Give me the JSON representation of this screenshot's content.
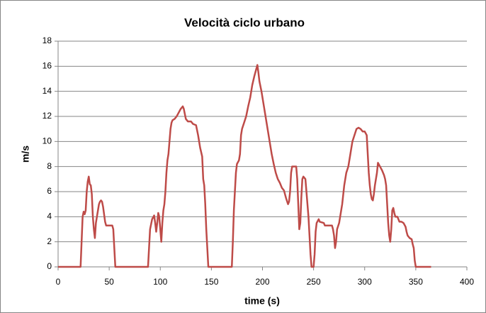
{
  "chart_data": {
    "type": "line",
    "title": "Velocità ciclo urbano",
    "x_label": "time (s)",
    "y_label": "m/s",
    "color": "#be4b48",
    "grid": true,
    "xlim": [
      0,
      400
    ],
    "xticks": [
      0,
      50,
      100,
      150,
      200,
      250,
      300,
      350,
      400
    ],
    "ylim": [
      0,
      18
    ],
    "yticks": [
      0,
      2,
      4,
      6,
      8,
      10,
      12,
      14,
      16,
      18
    ],
    "x": [
      0,
      22,
      23,
      24,
      25,
      26,
      27,
      28,
      29,
      30,
      31,
      32,
      33,
      34,
      35,
      36,
      37,
      38,
      39,
      40,
      41,
      42,
      43,
      44,
      45,
      46,
      47,
      50,
      53,
      54,
      55,
      56,
      88,
      89,
      90,
      92,
      94,
      95,
      96,
      97,
      98,
      99,
      100,
      101,
      102,
      103,
      104,
      105,
      106,
      107,
      108,
      109,
      110,
      111,
      112,
      114,
      116,
      118,
      120,
      122,
      123,
      124,
      125,
      127,
      130,
      132,
      135,
      137,
      139,
      141,
      142,
      143,
      144,
      145,
      146,
      147,
      170,
      171,
      172,
      173,
      174,
      175,
      177,
      178,
      179,
      180,
      182,
      184,
      186,
      188,
      190,
      192,
      194,
      195,
      196,
      197,
      199,
      201,
      203,
      205,
      207,
      209,
      211,
      213,
      215,
      217,
      219,
      221,
      223,
      225,
      226,
      227,
      228,
      229,
      233,
      234,
      235,
      236,
      237,
      238,
      239,
      240,
      242,
      243,
      244,
      245,
      246,
      247,
      248,
      250,
      251,
      252,
      253,
      255,
      256,
      260,
      261,
      268,
      269,
      270,
      271,
      272,
      273,
      275,
      277,
      278,
      280,
      282,
      284,
      286,
      288,
      290,
      292,
      294,
      296,
      298,
      300,
      302,
      303,
      304,
      305,
      306,
      307,
      308,
      309,
      310,
      311,
      312,
      313,
      315,
      317,
      319,
      320,
      321,
      322,
      323,
      324,
      325,
      326,
      327,
      328,
      329,
      330,
      332,
      334,
      336,
      338,
      340,
      341,
      342,
      344,
      346,
      347,
      348,
      349,
      350,
      365
    ],
    "values": [
      0,
      0,
      2,
      4,
      4.4,
      4.2,
      4.5,
      6,
      6.8,
      7.2,
      6.6,
      6.5,
      5.8,
      4,
      3,
      2.3,
      3.5,
      4,
      4.5,
      5,
      5.2,
      5.3,
      5.2,
      4.8,
      4.2,
      3.6,
      3.3,
      3.3,
      3.3,
      3,
      1.5,
      0,
      0,
      1.5,
      3,
      3.8,
      4.1,
      3.5,
      2.8,
      3.5,
      4.3,
      4,
      3,
      2,
      3.5,
      4.5,
      5,
      6,
      7.5,
      8.5,
      9,
      10,
      11,
      11.5,
      11.7,
      11.8,
      12,
      12.3,
      12.6,
      12.8,
      12.6,
      12.2,
      11.8,
      11.6,
      11.6,
      11.4,
      11.3,
      10.5,
      9.5,
      8.8,
      7,
      6.5,
      5,
      3,
      1.5,
      0,
      0,
      2,
      4.5,
      6,
      7.5,
      8.2,
      8.5,
      9,
      10.5,
      11,
      11.5,
      12,
      12.8,
      13.5,
      14.5,
      15.2,
      15.8,
      16.1,
      15.5,
      14.8,
      14,
      13,
      12,
      11,
      10,
      9,
      8.2,
      7.5,
      7,
      6.7,
      6.3,
      6.1,
      5.5,
      5,
      5.2,
      6,
      7.5,
      8,
      8,
      7,
      5,
      3,
      3.5,
      5.5,
      7,
      7.2,
      7,
      6,
      5,
      4,
      2.5,
      1,
      0,
      0,
      1,
      2.8,
      3.5,
      3.8,
      3.6,
      3.5,
      3.3,
      3.3,
      3,
      2.5,
      1.5,
      2,
      3,
      3.5,
      4.5,
      5,
      6.5,
      7.5,
      8,
      9,
      10,
      10.5,
      11,
      11.1,
      11,
      10.8,
      10.8,
      10.5,
      9,
      7.5,
      6.5,
      5.8,
      5.4,
      5.3,
      5.8,
      6.5,
      7,
      7.5,
      8.3,
      8,
      7.7,
      7.3,
      7,
      6.5,
      5,
      3.5,
      2.5,
      2,
      3,
      4.5,
      4.7,
      4.3,
      4,
      4,
      3.6,
      3.6,
      3.5,
      3.2,
      2.8,
      2.5,
      2.3,
      2.2,
      1.8,
      1.5,
      0.5,
      0,
      0
    ]
  }
}
